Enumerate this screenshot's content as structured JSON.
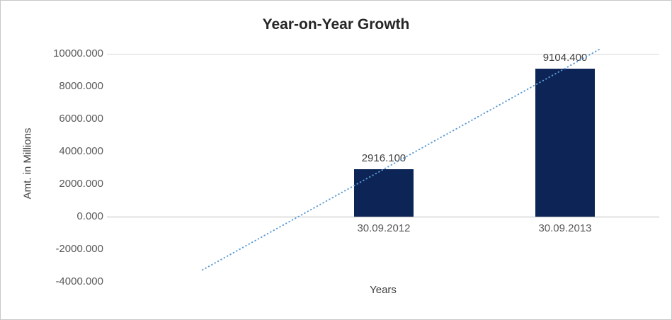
{
  "chart_data": {
    "type": "bar",
    "title": "Year-on-Year Growth",
    "xlabel": "Years",
    "ylabel": "Amt. in Millions",
    "categories": [
      "30.09.2012",
      "30.09.2013"
    ],
    "values": [
      2916.1,
      9104.4
    ],
    "data_labels": [
      "2916.100",
      "9104.400"
    ],
    "ylim": [
      -4000,
      10000
    ],
    "y_ticks": [
      {
        "value": 10000,
        "label": "10000.000"
      },
      {
        "value": 8000,
        "label": "8000.000"
      },
      {
        "value": 6000,
        "label": "6000.000"
      },
      {
        "value": 4000,
        "label": "4000.000"
      },
      {
        "value": 2000,
        "label": "2000.000"
      },
      {
        "value": 0,
        "label": "0.000"
      },
      {
        "value": -2000,
        "label": "-2000.000"
      },
      {
        "value": -4000,
        "label": "-4000.000"
      }
    ],
    "legend": "none",
    "grid": "horizontal line at axis max and zero axis only",
    "trendline": {
      "type": "linear",
      "style": "dotted",
      "through_points": true,
      "backward_forecast_periods": 1
    },
    "colors": {
      "bar": "#0d2556",
      "trendline": "#5b9bd5",
      "gridline": "#d9d9d9",
      "zero_axis": "#bdbdbd",
      "title_text": "#262626",
      "tick_text": "#595959",
      "axis_title_text": "#404040",
      "background": "#ffffff",
      "border": "#c8c8c8"
    }
  }
}
